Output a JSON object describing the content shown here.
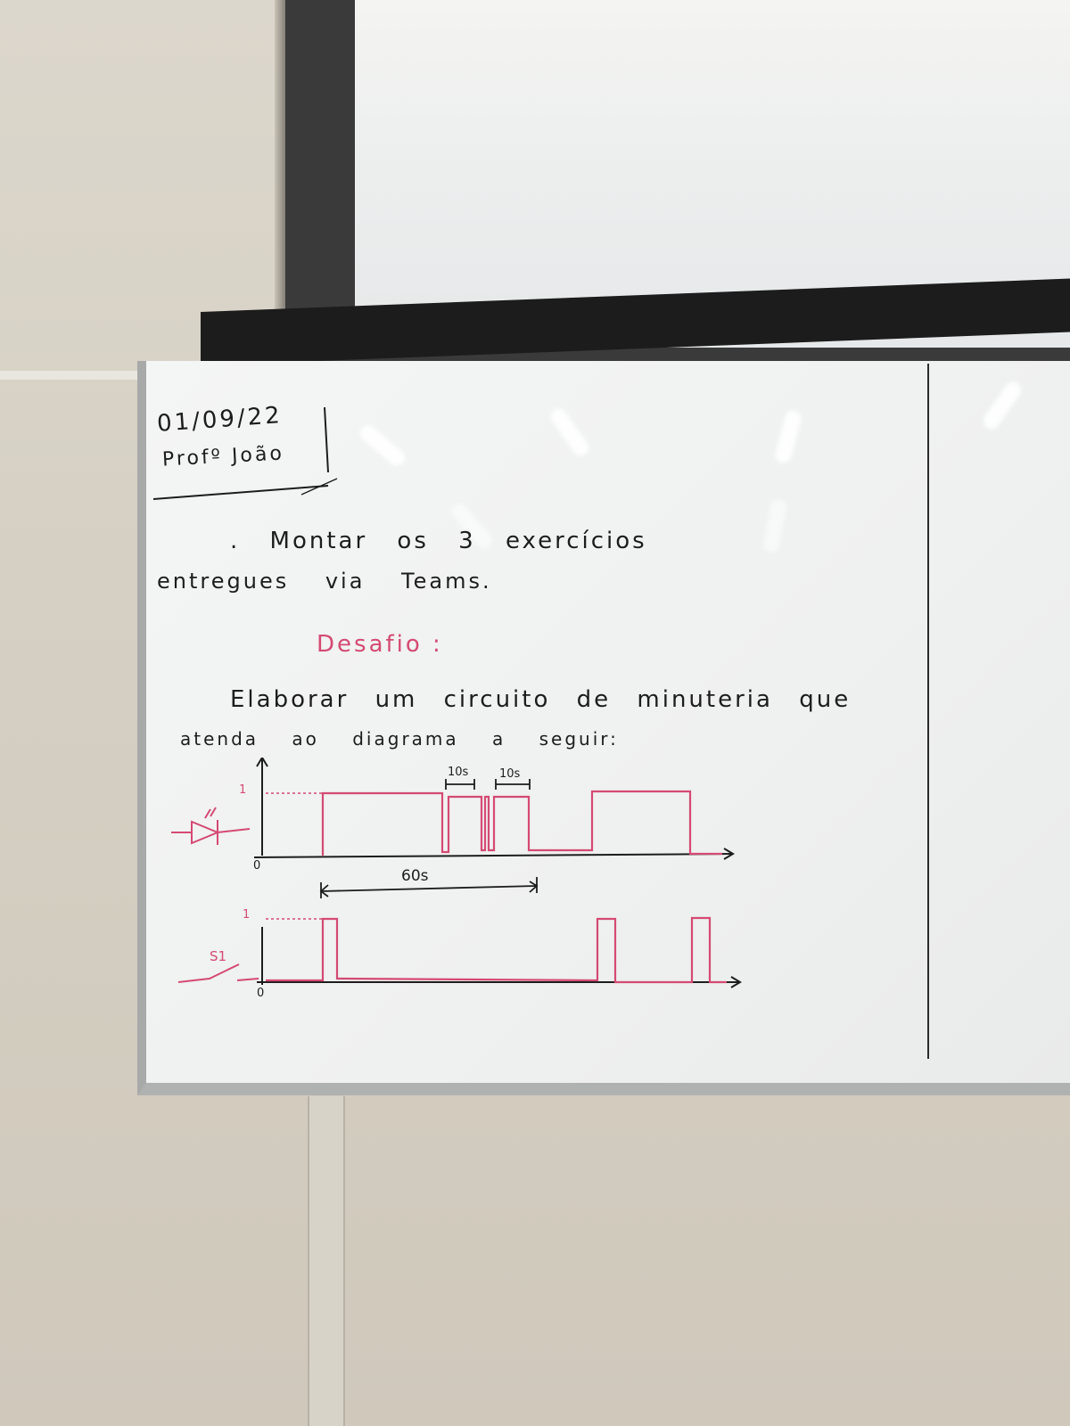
{
  "whiteboard": {
    "date": "01/09/22",
    "teacher": "Profº João",
    "task_line1": ". Montar os 3 exercícios",
    "task_line2": "entregues via Teams.",
    "challenge_heading": "Desafio :",
    "challenge_line1": "Elaborar um circuito de minuteria que",
    "challenge_line2": "atenda ao diagrama a seguir:"
  },
  "diagram": {
    "top_axis": {
      "high_label": "1",
      "low_label": "0"
    },
    "bottom_axis": {
      "high_label": "1",
      "low_label": "0"
    },
    "switch_label": "S1",
    "interval_long": "60s",
    "interval_a": "10s",
    "interval_b": "10s",
    "colors": {
      "signal": "#d44a73",
      "ink": "#1d1d1d"
    }
  }
}
